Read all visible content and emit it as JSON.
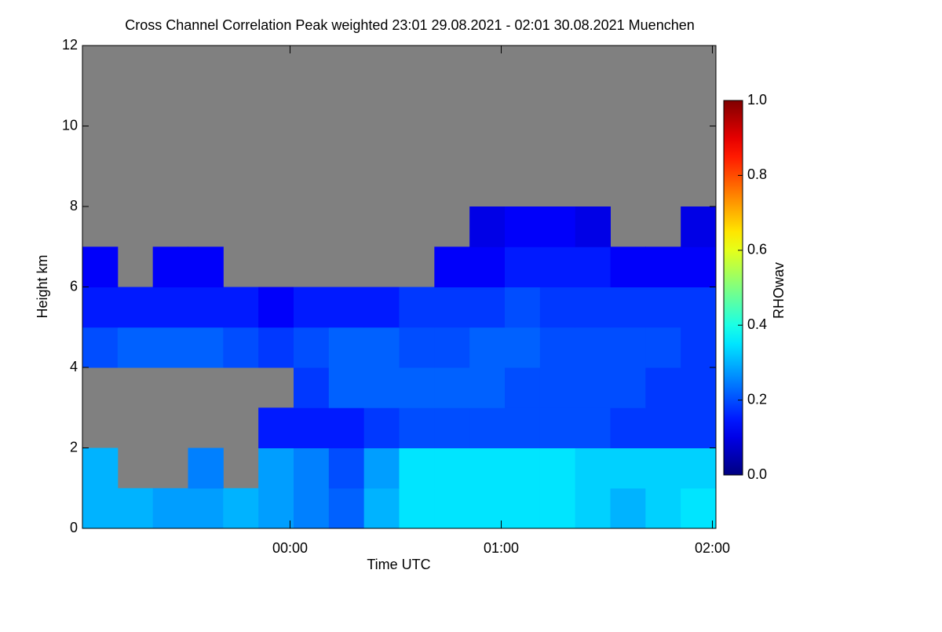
{
  "chart_data": {
    "type": "heatmap",
    "title": "Cross Channel Correlation Peak weighted   23:01 29.08.2021 - 02:01 30.08.2021 Muenchen",
    "xlabel": "Time UTC",
    "ylabel": "Height km",
    "colorbar_label": "RHOwav",
    "x_edges": [
      0,
      10,
      20,
      30,
      40,
      50,
      60,
      70,
      80,
      90,
      100,
      110,
      120,
      130,
      140,
      150,
      160,
      170,
      180
    ],
    "y_edges": [
      0,
      1,
      2,
      3,
      4,
      5,
      6,
      7,
      8,
      9,
      10,
      11,
      12
    ],
    "values": [
      [
        0.3,
        0.3,
        0.28,
        0.28,
        0.3,
        0.28,
        0.25,
        0.22,
        0.3,
        0.35,
        0.35,
        0.35,
        0.35,
        0.35,
        0.33,
        0.3,
        0.33,
        0.35
      ],
      [
        0.3,
        null,
        null,
        0.25,
        null,
        0.28,
        0.25,
        0.2,
        0.28,
        0.35,
        0.35,
        0.35,
        0.35,
        0.35,
        0.33,
        0.33,
        0.33,
        0.33
      ],
      [
        null,
        null,
        null,
        null,
        null,
        0.15,
        0.15,
        0.15,
        0.18,
        0.2,
        0.2,
        0.2,
        0.2,
        0.2,
        0.2,
        0.18,
        0.18,
        0.18
      ],
      [
        null,
        null,
        null,
        null,
        null,
        null,
        0.18,
        0.22,
        0.22,
        0.22,
        0.22,
        0.22,
        0.2,
        0.2,
        0.2,
        0.2,
        0.18,
        0.18
      ],
      [
        0.2,
        0.22,
        0.22,
        0.22,
        0.2,
        0.18,
        0.2,
        0.22,
        0.22,
        0.2,
        0.2,
        0.22,
        0.22,
        0.2,
        0.2,
        0.2,
        0.2,
        0.18
      ],
      [
        0.15,
        0.15,
        0.15,
        0.15,
        0.15,
        0.12,
        0.15,
        0.15,
        0.15,
        0.18,
        0.18,
        0.18,
        0.2,
        0.18,
        0.18,
        0.18,
        0.18,
        0.18
      ],
      [
        0.12,
        null,
        0.12,
        0.12,
        null,
        null,
        null,
        null,
        null,
        null,
        0.12,
        0.12,
        0.15,
        0.15,
        0.15,
        0.12,
        0.12,
        0.12
      ],
      [
        null,
        null,
        null,
        null,
        null,
        null,
        null,
        null,
        null,
        null,
        null,
        0.1,
        0.12,
        0.12,
        0.1,
        null,
        null,
        0.1
      ],
      [
        null,
        null,
        null,
        null,
        null,
        null,
        null,
        null,
        null,
        null,
        null,
        null,
        null,
        null,
        null,
        null,
        null,
        null
      ],
      [
        null,
        null,
        null,
        null,
        null,
        null,
        null,
        null,
        null,
        null,
        null,
        null,
        null,
        null,
        null,
        null,
        null,
        null
      ],
      [
        null,
        null,
        null,
        null,
        null,
        null,
        null,
        null,
        null,
        null,
        null,
        null,
        null,
        null,
        null,
        null,
        null,
        null
      ],
      [
        null,
        null,
        null,
        null,
        null,
        null,
        null,
        null,
        null,
        null,
        null,
        null,
        null,
        null,
        null,
        null,
        null,
        null
      ]
    ],
    "xlim": [
      0,
      180
    ],
    "xticks": [
      {
        "value": 59,
        "label": "00:00"
      },
      {
        "value": 119,
        "label": "01:00"
      },
      {
        "value": 179,
        "label": "02:00"
      }
    ],
    "ylim": [
      0,
      12
    ],
    "yticks": [
      0,
      2,
      4,
      6,
      8,
      10,
      12
    ],
    "zlim": [
      0,
      1
    ],
    "zticks": [
      {
        "value": 0,
        "label": "0.0"
      },
      0.2,
      0.4,
      0.6,
      0.8,
      {
        "value": 1,
        "label": "1.0"
      }
    ],
    "colormap": "jet",
    "null_color": "#808080"
  }
}
